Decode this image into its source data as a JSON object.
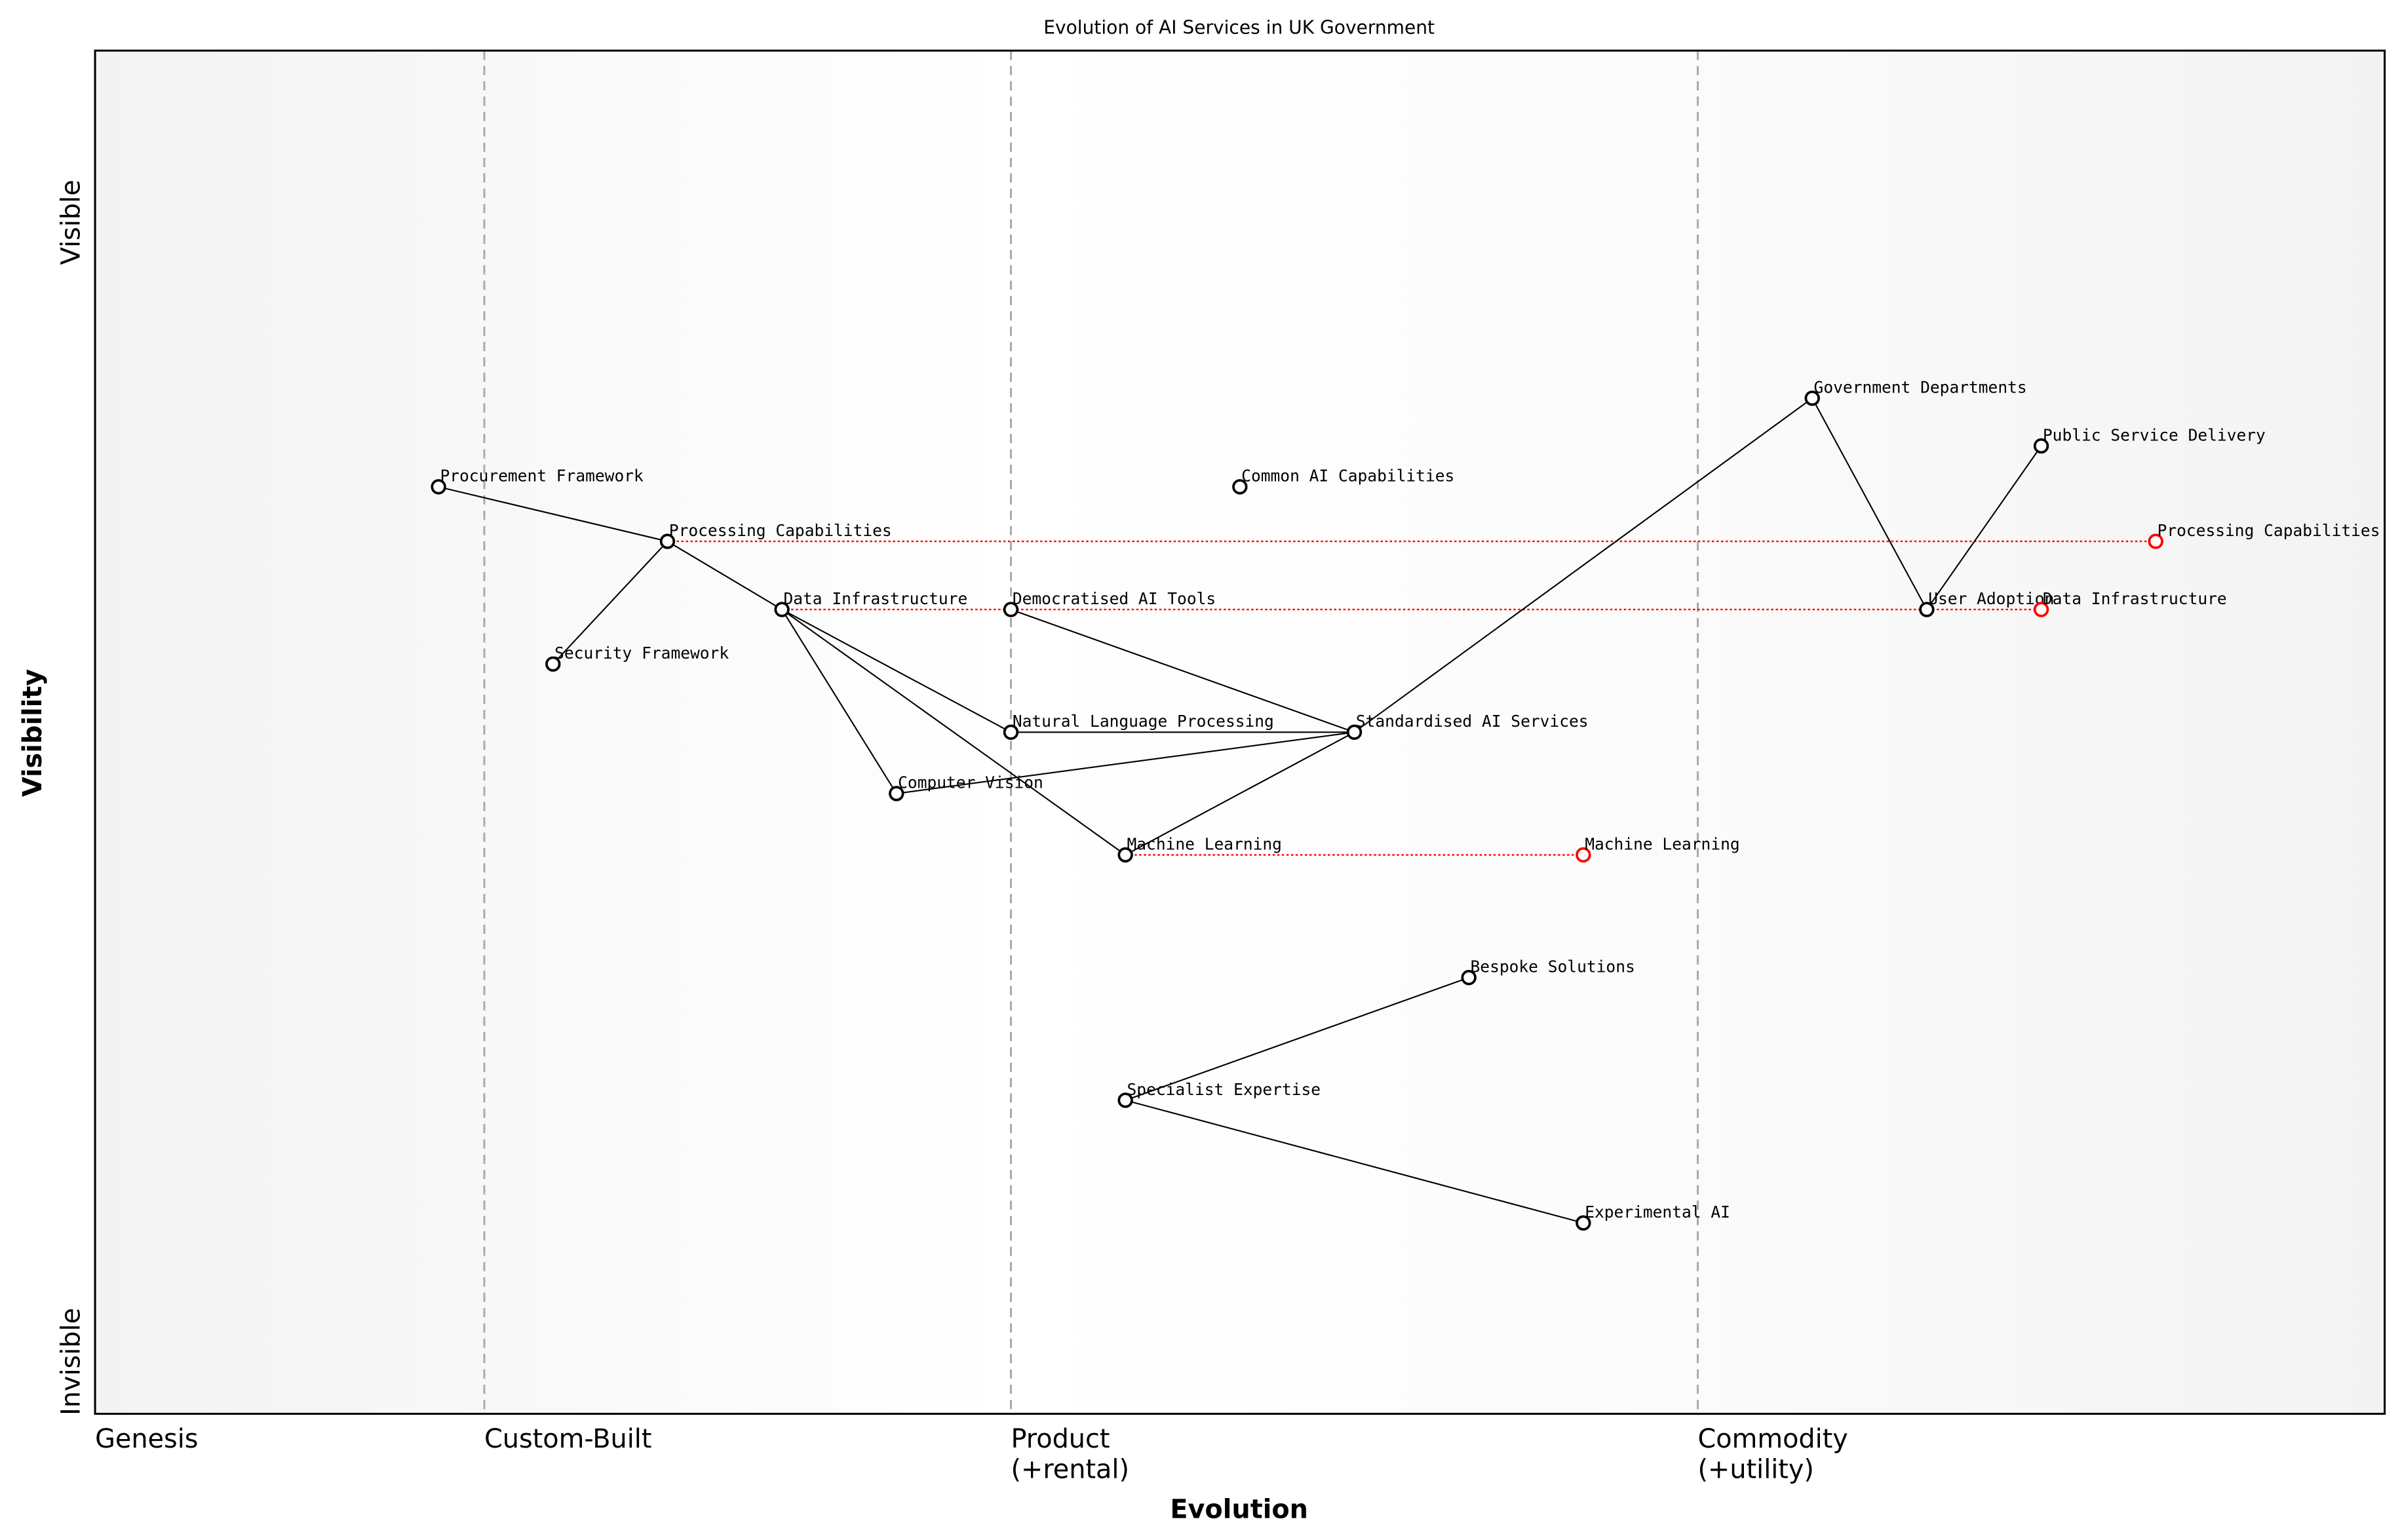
{
  "chart_data": {
    "type": "wardley-map",
    "title": "Evolution of AI Services in UK Government",
    "xlabel": "Evolution",
    "ylabel": "Visibility",
    "xlim": [
      0,
      1
    ],
    "ylim": [
      0,
      1
    ],
    "x_stages": [
      {
        "label": "Genesis",
        "at": 0
      },
      {
        "label": "Custom-Built",
        "at": 0.17
      },
      {
        "label": "Product\n(+rental)",
        "at": 0.4
      },
      {
        "label": "Commodity\n(+utility)",
        "at": 0.7
      }
    ],
    "y_labels": {
      "top": "Visible",
      "bottom": "Invisible"
    },
    "components": [
      {
        "name": "Procurement Framework",
        "evolution": 0.15,
        "visibility": 0.68
      },
      {
        "name": "Processing Capabilities",
        "evolution": 0.25,
        "visibility": 0.64
      },
      {
        "name": "Security Framework",
        "evolution": 0.2,
        "visibility": 0.55
      },
      {
        "name": "Data Infrastructure",
        "evolution": 0.3,
        "visibility": 0.59
      },
      {
        "name": "Democratised AI Tools",
        "evolution": 0.4,
        "visibility": 0.59
      },
      {
        "name": "Common AI Capabilities",
        "evolution": 0.5,
        "visibility": 0.68
      },
      {
        "name": "Natural Language Processing",
        "evolution": 0.4,
        "visibility": 0.5
      },
      {
        "name": "Computer Vision",
        "evolution": 0.35,
        "visibility": 0.455
      },
      {
        "name": "Machine Learning",
        "evolution": 0.45,
        "visibility": 0.41
      },
      {
        "name": "Standardised AI Services",
        "evolution": 0.55,
        "visibility": 0.5
      },
      {
        "name": "Government Departments",
        "evolution": 0.75,
        "visibility": 0.745
      },
      {
        "name": "Public Service Delivery",
        "evolution": 0.85,
        "visibility": 0.71
      },
      {
        "name": "User Adoption",
        "evolution": 0.8,
        "visibility": 0.59
      },
      {
        "name": "Bespoke Solutions",
        "evolution": 0.6,
        "visibility": 0.32
      },
      {
        "name": "Specialist Expertise",
        "evolution": 0.45,
        "visibility": 0.23
      },
      {
        "name": "Experimental AI",
        "evolution": 0.65,
        "visibility": 0.14
      }
    ],
    "evolved": [
      {
        "name": "Processing Capabilities",
        "from": 1,
        "evolution": 0.9,
        "visibility": 0.64
      },
      {
        "name": "Data Infrastructure",
        "from": 3,
        "evolution": 0.85,
        "visibility": 0.59
      },
      {
        "name": "Machine Learning",
        "from": 8,
        "evolution": 0.65,
        "visibility": 0.41
      }
    ],
    "links": [
      [
        0,
        1
      ],
      [
        1,
        2
      ],
      [
        1,
        3
      ],
      [
        3,
        6
      ],
      [
        3,
        7
      ],
      [
        3,
        8
      ],
      [
        4,
        9
      ],
      [
        6,
        9
      ],
      [
        7,
        9
      ],
      [
        8,
        9
      ],
      [
        9,
        10
      ],
      [
        10,
        12
      ],
      [
        12,
        11
      ],
      [
        14,
        13
      ],
      [
        14,
        15
      ]
    ],
    "colors": {
      "component": "#000000",
      "evolved": "#ff0000",
      "link": "#000000",
      "stage_line": "#aaaaaa"
    }
  }
}
